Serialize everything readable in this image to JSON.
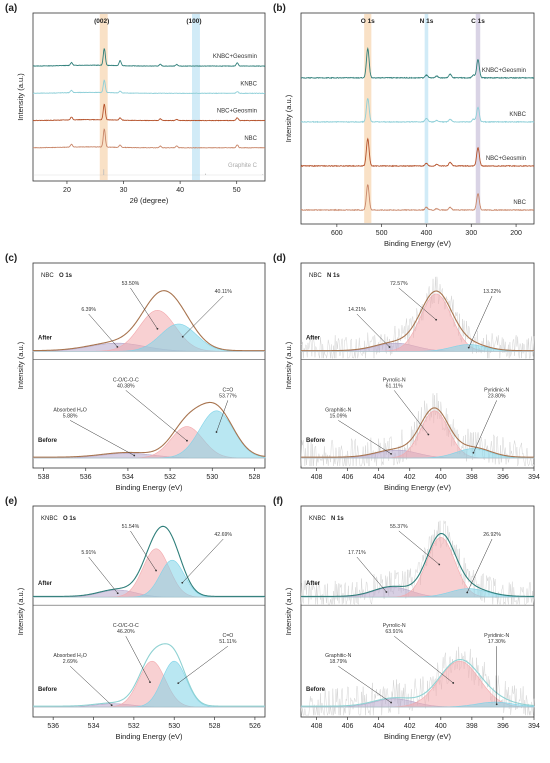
{
  "colors": {
    "nbc": "#c9876a",
    "nbc_geosmin": "#b5522b",
    "knbc": "#8ecfd8",
    "knbc_geosmin": "#2f7f7a",
    "graphite": "#bbbbbb",
    "band_orange": "#f7d9b8",
    "band_blue": "#c6e6f5",
    "band_purple": "#cfc8df",
    "envelope_nbc": "#a8744f",
    "envelope_knbc_after": "#2e7e7a",
    "envelope_knbc_before": "#8ed1d2",
    "peak_pink": "#f3a9ad",
    "peak_cyan": "#7fd3e8",
    "peak_purple": "#b6a8cc",
    "peak_grey": "#d6d6d6",
    "noise": "#cfcfcf"
  },
  "chart_data": [
    {
      "panel_label": "(a)",
      "type": "line",
      "xlabel": "2θ (degree)",
      "ylabel": "Intensity (a.u.)",
      "xlim": [
        14,
        55
      ],
      "x_ticks": [
        "20",
        "30",
        "40",
        "50"
      ],
      "bands": [
        {
          "center": 26.5,
          "width": 1.4,
          "color": "band_orange",
          "label": "(002)"
        },
        {
          "center": 42.8,
          "width": 1.4,
          "color": "band_blue",
          "label": "(100)"
        }
      ],
      "series": [
        {
          "name": "KNBC+Geosmin",
          "color": "knbc_geosmin",
          "offset": 4,
          "peaks": [
            [
              20.8,
              0.25
            ],
            [
              26.6,
              1.5
            ],
            [
              29.4,
              0.45
            ],
            [
              36.5,
              0.15
            ],
            [
              39.4,
              0.15
            ],
            [
              50.1,
              0.3
            ]
          ]
        },
        {
          "name": "KNBC",
          "color": "knbc",
          "offset": 3,
          "peaks": [
            [
              20.8,
              0.2
            ],
            [
              26.6,
              1.1
            ],
            [
              29.4,
              0.15
            ],
            [
              50.1,
              0.15
            ]
          ]
        },
        {
          "name": "NBC+Geosmin",
          "color": "nbc_geosmin",
          "offset": 2,
          "peaks": [
            [
              20.8,
              0.25
            ],
            [
              26.6,
              1.4
            ],
            [
              29.4,
              0.2
            ],
            [
              36.5,
              0.15
            ],
            [
              39.4,
              0.1
            ],
            [
              50.1,
              0.25
            ]
          ]
        },
        {
          "name": "NBC",
          "color": "nbc",
          "offset": 1,
          "peaks": [
            [
              20.8,
              0.25
            ],
            [
              26.6,
              1.6
            ],
            [
              29.4,
              0.2
            ],
            [
              36.5,
              0.15
            ],
            [
              39.4,
              0.15
            ],
            [
              50.1,
              0.25
            ]
          ]
        },
        {
          "name": "Graphite C",
          "color": "graphite",
          "offset": 0,
          "sticks": [
            [
              26.5,
              0.8
            ],
            [
              44.5,
              0.2
            ],
            [
              54.6,
              0.1
            ]
          ]
        }
      ]
    },
    {
      "panel_label": "(b)",
      "type": "line",
      "xlabel": "Binding Energy (eV)",
      "ylabel": "Intensity (a.u.)",
      "xlim": [
        680,
        160
      ],
      "x_ticks": [
        "600",
        "500",
        "400",
        "300",
        "200"
      ],
      "bands": [
        {
          "center": 531,
          "width": 16,
          "color": "band_orange",
          "label": "O 1s"
        },
        {
          "center": 400,
          "width": 8,
          "color": "band_blue",
          "label": "N 1s"
        },
        {
          "center": 285,
          "width": 10,
          "color": "band_purple",
          "label": "C 1s"
        }
      ],
      "series": [
        {
          "name": "KNBC+Geosmin",
          "color": "knbc_geosmin",
          "offset": 3,
          "peaks": [
            [
              531,
              1.6
            ],
            [
              400,
              0.15
            ],
            [
              285,
              1.0
            ],
            [
              347,
              0.2
            ],
            [
              295,
              0.15
            ],
            [
              377,
              0.1
            ]
          ]
        },
        {
          "name": "KNBC",
          "color": "knbc",
          "offset": 2,
          "peaks": [
            [
              531,
              1.3
            ],
            [
              400,
              0.2
            ],
            [
              285,
              0.8
            ],
            [
              347,
              0.15
            ],
            [
              295,
              0.15
            ],
            [
              377,
              0.08
            ]
          ]
        },
        {
          "name": "NBC+Geosmin",
          "color": "nbc_geosmin",
          "offset": 1,
          "peaks": [
            [
              531,
              1.5
            ],
            [
              400,
              0.15
            ],
            [
              285,
              1.0
            ],
            [
              347,
              0.2
            ],
            [
              377,
              0.08
            ]
          ]
        },
        {
          "name": "NBC",
          "color": "nbc",
          "offset": 0,
          "peaks": [
            [
              531,
              1.4
            ],
            [
              400,
              0.15
            ],
            [
              285,
              0.9
            ],
            [
              347,
              0.15
            ],
            [
              377,
              0.08
            ]
          ]
        }
      ]
    },
    {
      "panel_label": "(c)",
      "type": "area",
      "sample": "NBC",
      "element": "O 1s",
      "xlabel": "Binding Energy (eV)",
      "ylabel": "Intensity (a.u.)",
      "xlim": [
        538.5,
        527.5
      ],
      "x_ticks": [
        "538",
        "536",
        "534",
        "532",
        "530",
        "528"
      ],
      "envelope_color": "envelope_nbc",
      "after": {
        "label": "After",
        "components": [
          {
            "center": 534.5,
            "amp": 0.06,
            "sigma": 1.3,
            "color": "peak_purple"
          },
          {
            "center": 532.6,
            "amp": 0.3,
            "sigma": 0.85,
            "color": "peak_pink"
          },
          {
            "center": 531.6,
            "amp": 0.2,
            "sigma": 0.85,
            "color": "peak_cyan"
          }
        ],
        "annotations": [
          {
            "text": "6.39%",
            "target": 534.5
          },
          {
            "text": "53.50%",
            "target": 532.6
          },
          {
            "text": "40.11%",
            "target": 531.4
          }
        ]
      },
      "before": {
        "label": "Before",
        "components": [
          {
            "center": 534.0,
            "amp": 0.03,
            "sigma": 1.2,
            "color": "peak_purple"
          },
          {
            "center": 531.2,
            "amp": 0.2,
            "sigma": 0.75,
            "color": "peak_pink"
          },
          {
            "center": 529.8,
            "amp": 0.3,
            "sigma": 0.8,
            "color": "peak_cyan"
          }
        ],
        "annotations": [
          {
            "text": "Absorbed H₂O\n5.88%",
            "target": 533.7
          },
          {
            "text": "C-O/C-O-C\n40.38%",
            "target": 531.2
          },
          {
            "text": "C=O\n53.77%",
            "target": 529.8
          }
        ]
      }
    },
    {
      "panel_label": "(d)",
      "type": "area",
      "sample": "NBC",
      "element": "N 1s",
      "xlabel": "Binding Energy (eV)",
      "ylabel": "Intensity (a.u.)",
      "xlim": [
        409,
        394
      ],
      "x_ticks": [
        "408",
        "406",
        "404",
        "402",
        "400",
        "398",
        "396",
        "394"
      ],
      "envelope_color": "envelope_nbc",
      "after": {
        "label": "After",
        "components": [
          {
            "center": 402.9,
            "amp": 0.06,
            "sigma": 1.3,
            "color": "peak_purple"
          },
          {
            "center": 400.3,
            "amp": 0.42,
            "sigma": 1.0,
            "color": "peak_pink"
          },
          {
            "center": 398.2,
            "amp": 0.05,
            "sigma": 1.1,
            "color": "peak_cyan"
          }
        ],
        "annotations": [
          {
            "text": "14.21%",
            "target": 403.3
          },
          {
            "text": "72.57%",
            "target": 400.3
          },
          {
            "text": "13.22%",
            "target": 398.2
          }
        ]
      },
      "before": {
        "label": "Before",
        "components": [
          {
            "center": 402.8,
            "amp": 0.05,
            "sigma": 1.3,
            "color": "peak_purple"
          },
          {
            "center": 400.4,
            "amp": 0.3,
            "sigma": 0.9,
            "color": "peak_pink"
          },
          {
            "center": 397.9,
            "amp": 0.06,
            "sigma": 1.1,
            "color": "peak_cyan"
          }
        ],
        "annotations": [
          {
            "text": "Graphitic-N\n15.09%",
            "target": 403.2
          },
          {
            "text": "Pyrrolic-N\n61.11%",
            "target": 400.8
          },
          {
            "text": "Pyridinic-N\n23.80%",
            "target": 397.9
          }
        ]
      }
    },
    {
      "panel_label": "(e)",
      "type": "area",
      "sample": "KNBC",
      "element": "O 1s",
      "xlabel": "Binding Energy (eV)",
      "ylabel": "Intensity (a.u.)",
      "xlim": [
        537,
        525.5
      ],
      "x_ticks": [
        "536",
        "534",
        "532",
        "530",
        "528",
        "526"
      ],
      "envelope_after": "envelope_knbc_after",
      "envelope_before": "envelope_knbc_before",
      "after": {
        "label": "After",
        "components": [
          {
            "center": 532.8,
            "amp": 0.05,
            "sigma": 0.9,
            "color": "peak_purple"
          },
          {
            "center": 530.9,
            "amp": 0.34,
            "sigma": 0.65,
            "color": "peak_pink"
          },
          {
            "center": 530.1,
            "amp": 0.26,
            "sigma": 0.6,
            "color": "peak_cyan"
          }
        ],
        "annotations": [
          {
            "text": "5.91%",
            "target": 532.8
          },
          {
            "text": "51.54%",
            "target": 530.9
          },
          {
            "text": "42.69%",
            "target": 529.6
          }
        ]
      },
      "before": {
        "label": "Before",
        "components": [
          {
            "center": 533.0,
            "amp": 0.02,
            "sigma": 0.9,
            "color": "peak_purple"
          },
          {
            "center": 531.1,
            "amp": 0.28,
            "sigma": 0.65,
            "color": "peak_pink"
          },
          {
            "center": 530.0,
            "amp": 0.28,
            "sigma": 0.6,
            "color": "peak_cyan"
          }
        ],
        "annotations": [
          {
            "text": "Absorbed H₂O\n2.69%",
            "target": 533.1
          },
          {
            "text": "C-O/C-O-C\n46.20%",
            "target": 531.2
          },
          {
            "text": "C=O\n51.11%",
            "target": 529.8
          }
        ]
      }
    },
    {
      "panel_label": "(f)",
      "type": "area",
      "sample": "KNBC",
      "element": "N 1s",
      "xlabel": "Binding Energy (eV)",
      "ylabel": "Intensity (a.u.)",
      "xlim": [
        409,
        394
      ],
      "x_ticks": [
        "408",
        "406",
        "404",
        "402",
        "400",
        "398",
        "396",
        "394"
      ],
      "envelope_after": "envelope_knbc_after",
      "envelope_before": "envelope_knbc_before",
      "after": {
        "label": "After",
        "components": [
          {
            "center": 403.1,
            "amp": 0.07,
            "sigma": 1.2,
            "color": "peak_purple"
          },
          {
            "center": 400.0,
            "amp": 0.42,
            "sigma": 0.9,
            "color": "peak_pink"
          },
          {
            "center": 398.2,
            "amp": 0.06,
            "sigma": 1.2,
            "color": "peak_cyan"
          }
        ],
        "annotations": [
          {
            "text": "17.71%",
            "target": 403.5
          },
          {
            "text": "55.37%",
            "target": 400.1
          },
          {
            "text": "26.92%",
            "target": 398.3
          }
        ]
      },
      "before": {
        "label": "Before",
        "components": [
          {
            "center": 403.0,
            "amp": 0.05,
            "sigma": 1.3,
            "color": "peak_purple"
          },
          {
            "center": 398.8,
            "amp": 0.28,
            "sigma": 1.3,
            "color": "peak_pink"
          },
          {
            "center": 396.5,
            "amp": 0.03,
            "sigma": 1.2,
            "color": "peak_cyan"
          }
        ],
        "annotations": [
          {
            "text": "Graphitic-N\n18.79%",
            "target": 403.2
          },
          {
            "text": "Pyrrolic-N\n63.91%",
            "target": 399.2
          },
          {
            "text": "Pyridinic-N\n17.30%",
            "target": 396.4
          }
        ]
      }
    }
  ]
}
